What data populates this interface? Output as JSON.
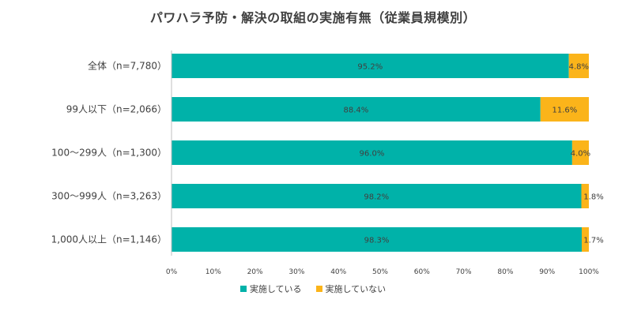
{
  "chart_data": {
    "type": "bar",
    "orientation": "horizontal",
    "stacked": true,
    "title": "パワハラ予防・解決の取組の実施有無（従業員規模別）",
    "categories": [
      "全体（n=7,780）",
      "99人以下（n=2,066）",
      "100〜299人（n=1,300）",
      "300〜999人（n=3,263）",
      "1,000人以上（n=1,146）"
    ],
    "series": [
      {
        "name": "実施している",
        "color": "#00b2a9",
        "values": [
          95.2,
          88.4,
          96.0,
          98.2,
          98.3
        ],
        "labels": [
          "95.2%",
          "88.4%",
          "96.0%",
          "98.2%",
          "98.3%"
        ]
      },
      {
        "name": "実施していない",
        "color": "#fbb41a",
        "values": [
          4.8,
          11.6,
          4.0,
          1.8,
          1.7
        ],
        "labels": [
          "4.8%",
          "11.6%",
          "4.0%",
          "1.8%",
          "1.7%"
        ]
      }
    ],
    "xlim": [
      0,
      100
    ],
    "xticks": [
      "0%",
      "10%",
      "20%",
      "30%",
      "40%",
      "50%",
      "60%",
      "70%",
      "80%",
      "90%",
      "100%"
    ],
    "legend_position": "bottom",
    "grid": false
  }
}
